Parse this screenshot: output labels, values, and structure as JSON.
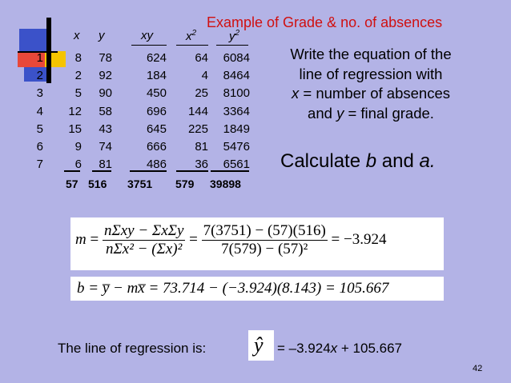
{
  "title": "Example of Grade & no. of absences",
  "headers": {
    "x": "x",
    "y": "y",
    "xy": "xy",
    "x2": "x",
    "x2_sup": "2",
    "y2": "y",
    "y2_sup": "2"
  },
  "rows": [
    {
      "i": "1",
      "x": "8",
      "y": "78",
      "xy": "624",
      "x2": "64",
      "y2": "6084"
    },
    {
      "i": "2",
      "x": "2",
      "y": "92",
      "xy": "184",
      "x2": "4",
      "y2": "8464"
    },
    {
      "i": "3",
      "x": "5",
      "y": "90",
      "xy": "450",
      "x2": "25",
      "y2": "8100"
    },
    {
      "i": "4",
      "x": "12",
      "y": "58",
      "xy": "696",
      "x2": "144",
      "y2": "3364"
    },
    {
      "i": "5",
      "x": "15",
      "y": "43",
      "xy": "645",
      "x2": "225",
      "y2": "1849"
    },
    {
      "i": "6",
      "x": "9",
      "y": "74",
      "xy": "666",
      "x2": "81",
      "y2": "5476"
    },
    {
      "i": "7",
      "x": "6",
      "y": "81",
      "xy": "486",
      "x2": "36",
      "y2": "6561"
    }
  ],
  "totals": {
    "x": "57",
    "y": "516",
    "xy": "3751",
    "x2": "579",
    "y2": "39898"
  },
  "instruction": {
    "line1": "Write the equation of the",
    "line2": "line of regression with",
    "line3_var": "x",
    "line3_rest": " = number of absences",
    "line4_pre": "and ",
    "line4_var": "y",
    "line4_rest": " = final grade."
  },
  "calculate": {
    "pre": "Calculate ",
    "b": "b",
    "mid": " and ",
    "a": "a."
  },
  "formula_m": {
    "lhs": "m",
    "eq": "=",
    "num1": "nΣxy − ΣxΣy",
    "den1": "nΣx² − (Σx)²",
    "num2": "7(3751) − (57)(516)",
    "den2": "7(579) − (57)²",
    "result": "= −3.924"
  },
  "formula_b": "b = y̅ − mx̅ = 73.714 − (−3.924)(8.143) = 105.667",
  "regression": {
    "label": "The line of regression is:",
    "yhat": "ŷ",
    "equation_pre": "= –3.924",
    "equation_var": "x",
    "equation_post": " + 105.667"
  },
  "page_number": "42",
  "colors": {
    "background": "#B3B3E6",
    "title": "#D01010",
    "square_red": "#E8483A",
    "square_yellow": "#F5C400",
    "square_blue": "#3B52C9"
  }
}
